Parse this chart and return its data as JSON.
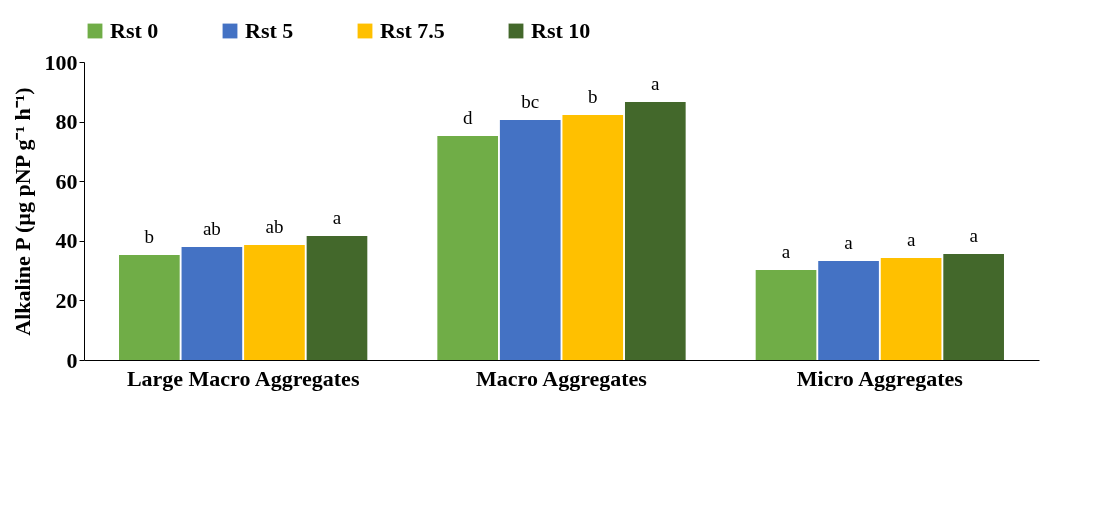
{
  "chart_data": {
    "type": "bar",
    "ylabel": "Alkaline P (µg pNP g⁻¹ h⁻¹)",
    "categories": [
      "Large Macro Aggregates",
      "Macro Aggregates",
      "Micro Aggregates"
    ],
    "series": [
      {
        "name": "Rst 0",
        "color": "#70ad47",
        "values": [
          35.2,
          75.2,
          30.2
        ],
        "value_labels": [
          "b",
          "d",
          "a"
        ]
      },
      {
        "name": "Rst 5",
        "color": "#4472c4",
        "values": [
          37.9,
          80.5,
          33.2
        ],
        "value_labels": [
          "ab",
          "bc",
          "a"
        ]
      },
      {
        "name": "Rst 7.5",
        "color": "#ffc000",
        "values": [
          38.6,
          82.2,
          34.2
        ],
        "value_labels": [
          "ab",
          "b",
          "a"
        ]
      },
      {
        "name": "Rst 10",
        "color": "#43682b",
        "values": [
          41.6,
          86.6,
          35.6
        ],
        "value_labels": [
          "a",
          "a",
          "a"
        ]
      }
    ],
    "ylim": [
      0,
      100
    ],
    "yticks": [
      0,
      20,
      40,
      60,
      80,
      100
    ],
    "legend": "top",
    "grid": false
  }
}
